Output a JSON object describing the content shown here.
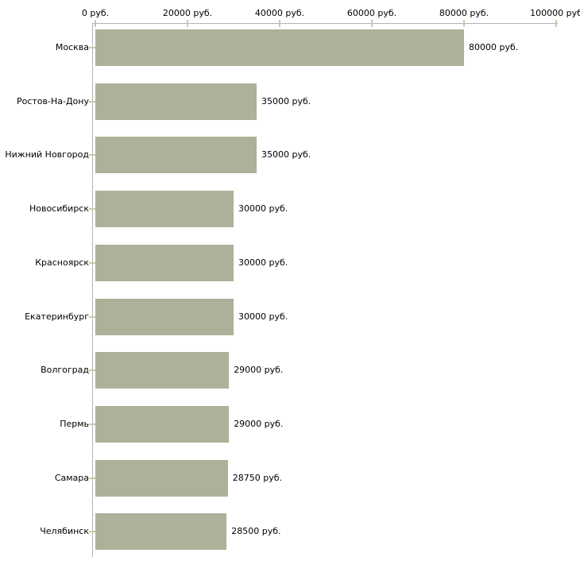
{
  "chart_data": {
    "type": "bar",
    "orientation": "horizontal",
    "title": "",
    "xlabel": "",
    "ylabel": "",
    "unit": "руб.",
    "categories": [
      "Москва",
      "Ростов-На-Дону",
      "Нижний Новгород",
      "Новосибирск",
      "Красноярск",
      "Екатеринбург",
      "Волгоград",
      "Пермь",
      "Самара",
      "Челябинск"
    ],
    "values": [
      80000,
      35000,
      35000,
      30000,
      30000,
      30000,
      29000,
      29000,
      28750,
      28500
    ],
    "value_labels": [
      "80000 руб.",
      "35000 руб.",
      "35000 руб.",
      "30000 руб.",
      "30000 руб.",
      "30000 руб.",
      "29000 руб.",
      "29000 руб.",
      "28750 руб.",
      "28500 руб."
    ],
    "x_axis": {
      "position": "top",
      "range": [
        0,
        100000
      ],
      "tick_values": [
        0,
        20000,
        40000,
        60000,
        80000,
        100000
      ],
      "tick_labels": [
        "0 руб.",
        "20000 руб.",
        "40000 руб.",
        "60000 руб.",
        "80000 руб.",
        "100000 руб"
      ]
    },
    "grid": false,
    "legend": "none"
  },
  "colors": {
    "bar": "#acb299",
    "axis_line": "#b3b3b3",
    "tick_mark": "#c9c9a9",
    "label_text": "#000000",
    "background": "#ffffff"
  }
}
